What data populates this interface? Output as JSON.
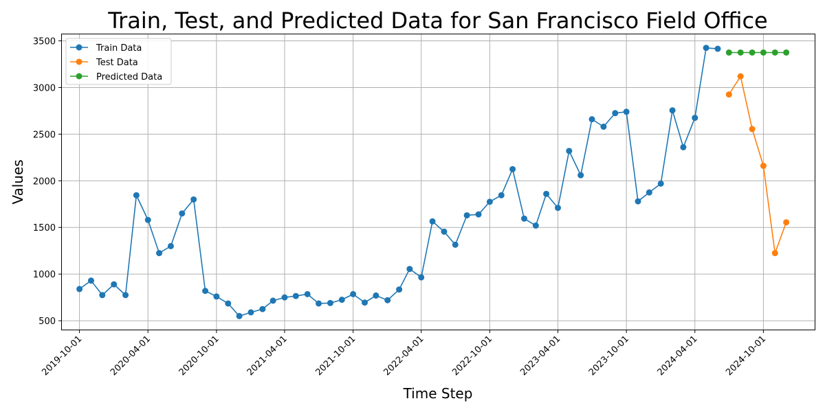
{
  "chart_data": {
    "type": "line",
    "title": "Train, Test, and Predicted Data for San Francisco Field Office",
    "xlabel": "Time Step",
    "ylabel": "Values",
    "grid": true,
    "legend_position": "top-left",
    "x_ticks": [
      "2019-10-01",
      "2020-04-01",
      "2020-10-01",
      "2021-04-01",
      "2021-10-01",
      "2022-04-01",
      "2022-10-01",
      "2023-04-01",
      "2023-10-01",
      "2024-04-01",
      "2024-10-01"
    ],
    "y_ticks": [
      500,
      1000,
      1500,
      2000,
      2500,
      3000,
      3500
    ],
    "xlim": [
      "2019-08-15",
      "2025-02-15"
    ],
    "ylim": [
      405,
      3570
    ],
    "series": [
      {
        "name": "Train Data",
        "color": "#1f77b4",
        "x": [
          "2019-10-01",
          "2019-11-01",
          "2019-12-01",
          "2020-01-01",
          "2020-02-01",
          "2020-03-01",
          "2020-04-01",
          "2020-05-01",
          "2020-06-01",
          "2020-07-01",
          "2020-08-01",
          "2020-09-01",
          "2020-10-01",
          "2020-11-01",
          "2020-12-01",
          "2021-01-01",
          "2021-02-01",
          "2021-03-01",
          "2021-04-01",
          "2021-05-01",
          "2021-06-01",
          "2021-07-01",
          "2021-08-01",
          "2021-09-01",
          "2021-10-01",
          "2021-11-01",
          "2021-12-01",
          "2022-01-01",
          "2022-02-01",
          "2022-03-01",
          "2022-04-01",
          "2022-05-01",
          "2022-06-01",
          "2022-07-01",
          "2022-08-01",
          "2022-09-01",
          "2022-10-01",
          "2022-11-01",
          "2022-12-01",
          "2023-01-01",
          "2023-02-01",
          "2023-03-01",
          "2023-04-01",
          "2023-05-01",
          "2023-06-01",
          "2023-07-01",
          "2023-08-01",
          "2023-09-01",
          "2023-10-01",
          "2023-11-01",
          "2023-12-01",
          "2024-01-01",
          "2024-02-01",
          "2024-03-01",
          "2024-04-01",
          "2024-05-01",
          "2024-06-01"
        ],
        "values": [
          840,
          930,
          775,
          890,
          775,
          1845,
          1580,
          1225,
          1300,
          1650,
          1800,
          820,
          760,
          685,
          550,
          590,
          625,
          715,
          750,
          765,
          785,
          685,
          690,
          725,
          785,
          695,
          770,
          720,
          835,
          1055,
          965,
          1565,
          1455,
          1315,
          1630,
          1640,
          1775,
          1845,
          2125,
          1595,
          1520,
          1860,
          1710,
          2320,
          2060,
          2660,
          2580,
          2725,
          2740,
          1780,
          1875,
          1970,
          2755,
          2360,
          2675,
          3425,
          3415
        ]
      },
      {
        "name": "Test Data",
        "color": "#ff7f0e",
        "x": [
          "2024-07-01",
          "2024-08-01",
          "2024-09-01",
          "2024-10-01",
          "2024-11-01",
          "2024-12-01"
        ],
        "values": [
          2925,
          3120,
          2555,
          2160,
          1225,
          1555
        ]
      },
      {
        "name": "Predicted Data",
        "color": "#2ca02c",
        "x": [
          "2024-07-01",
          "2024-08-01",
          "2024-09-01",
          "2024-10-01",
          "2024-11-01",
          "2024-12-01"
        ],
        "values": [
          3375,
          3375,
          3375,
          3375,
          3375,
          3375
        ]
      }
    ]
  }
}
